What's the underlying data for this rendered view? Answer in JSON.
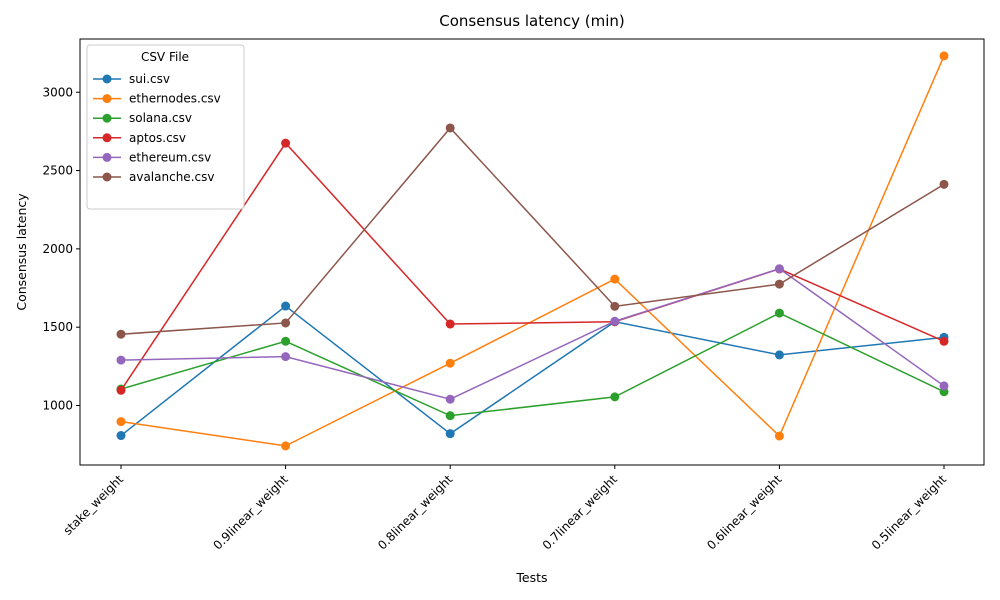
{
  "chart_data": {
    "type": "line",
    "title": "Consensus latency (min)",
    "xlabel": "Tests",
    "ylabel": "Consensus latency",
    "categories": [
      "stake_weight",
      "0.9linear_weight",
      "0.8linear_weight",
      "0.7linear_weight",
      "0.6linear_weight",
      "0.5linear_weight"
    ],
    "ylim": [
      620,
      3340
    ],
    "yticks": [
      1000,
      1500,
      2000,
      2500,
      3000
    ],
    "grid": false,
    "legend": {
      "title": "CSV File",
      "placement": "top-left"
    },
    "series": [
      {
        "name": "sui.csv",
        "color": "#1f77b4",
        "values": [
          808,
          1635,
          820,
          1535,
          1323,
          1435
        ]
      },
      {
        "name": "ethernodes.csv",
        "color": "#ff7f0e",
        "values": [
          897,
          742,
          1270,
          1807,
          805,
          3232
        ]
      },
      {
        "name": "solana.csv",
        "color": "#2ca02c",
        "values": [
          1105,
          1410,
          935,
          1055,
          1590,
          1088
        ]
      },
      {
        "name": "aptos.csv",
        "color": "#d62728",
        "values": [
          1097,
          2675,
          1520,
          1535,
          1872,
          1410
        ]
      },
      {
        "name": "ethereum.csv",
        "color": "#9467bd",
        "values": [
          1290,
          1312,
          1040,
          1538,
          1873,
          1125
        ]
      },
      {
        "name": "avalanche.csv",
        "color": "#8c564b",
        "values": [
          1455,
          1527,
          2772,
          1633,
          1775,
          2412
        ]
      }
    ]
  }
}
